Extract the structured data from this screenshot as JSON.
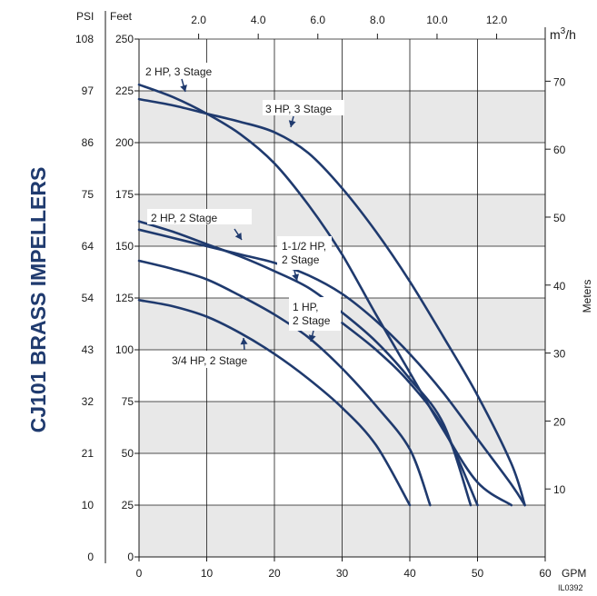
{
  "chart_data": {
    "type": "line",
    "title": "CJ101 BRASS IMPELLERS",
    "code": "IL0392",
    "x_axis": {
      "label": "GPM",
      "ticks": [
        0,
        10,
        20,
        30,
        40,
        50,
        60
      ],
      "range": [
        0,
        60
      ]
    },
    "x2_axis": {
      "label": "m3/h",
      "ticks": [
        "2.0",
        "4.0",
        "6.0",
        "8.0",
        "10.0",
        "12.0"
      ],
      "range": [
        0,
        13.63
      ]
    },
    "y_axis": {
      "label": "Feet",
      "ticks": [
        0,
        25,
        50,
        75,
        100,
        125,
        150,
        175,
        200,
        225,
        250
      ],
      "range": [
        0,
        250
      ]
    },
    "y_left_axis": {
      "label": "PSI",
      "ticks": [
        "0",
        "10",
        "21",
        "32",
        "43",
        "54",
        "64",
        "75",
        "86",
        "97",
        "108"
      ]
    },
    "y_right_axis": {
      "label": "Meters",
      "ticks": [
        10,
        20,
        30,
        40,
        50,
        60,
        70
      ],
      "range": [
        0,
        76.2
      ]
    },
    "grid": true,
    "series": [
      {
        "name": "2 HP, 3 Stage",
        "points": [
          [
            0,
            228
          ],
          [
            5,
            222
          ],
          [
            10,
            214
          ],
          [
            15,
            204
          ],
          [
            20,
            190
          ],
          [
            25,
            170
          ],
          [
            30,
            146
          ],
          [
            35,
            117
          ],
          [
            40,
            89
          ],
          [
            45,
            61
          ],
          [
            50,
            36
          ],
          [
            55,
            25
          ]
        ]
      },
      {
        "name": "3 HP, 3 Stage",
        "points": [
          [
            0,
            221
          ],
          [
            5,
            218
          ],
          [
            10,
            214
          ],
          [
            15,
            210
          ],
          [
            20,
            205
          ],
          [
            25,
            195
          ],
          [
            30,
            178
          ],
          [
            35,
            157
          ],
          [
            40,
            133
          ],
          [
            45,
            106
          ],
          [
            50,
            78
          ],
          [
            55,
            45
          ],
          [
            57,
            25
          ]
        ]
      },
      {
        "name": "2 HP, 2 Stage",
        "points": [
          [
            0,
            162
          ],
          [
            5,
            157
          ],
          [
            10,
            151
          ],
          [
            15,
            145
          ],
          [
            20,
            138
          ],
          [
            25,
            130
          ],
          [
            30,
            118
          ],
          [
            35,
            104
          ],
          [
            40,
            86
          ],
          [
            45,
            64
          ],
          [
            49,
            25
          ]
        ]
      },
      {
        "name": "1-1/2 HP, 2 Stage",
        "points": [
          [
            0,
            158
          ],
          [
            5,
            154
          ],
          [
            10,
            150
          ],
          [
            15,
            146
          ],
          [
            20,
            142
          ],
          [
            25,
            136
          ],
          [
            30,
            127
          ],
          [
            35,
            114
          ],
          [
            40,
            98
          ],
          [
            45,
            79
          ],
          [
            50,
            57
          ],
          [
            55,
            35
          ],
          [
            57,
            25
          ]
        ]
      },
      {
        "name": "1 HP, 2 Stage",
        "points": [
          [
            0,
            143
          ],
          [
            5,
            139
          ],
          [
            10,
            134
          ],
          [
            15,
            126
          ],
          [
            20,
            117
          ],
          [
            25,
            106
          ],
          [
            30,
            91
          ],
          [
            35,
            73
          ],
          [
            40,
            52
          ],
          [
            43,
            25
          ]
        ]
      },
      {
        "name": "3/4 HP, 2 Stage",
        "points": [
          [
            0,
            124
          ],
          [
            5,
            121
          ],
          [
            10,
            116
          ],
          [
            15,
            108
          ],
          [
            20,
            98
          ],
          [
            25,
            86
          ],
          [
            30,
            72
          ],
          [
            35,
            54
          ],
          [
            40,
            25
          ]
        ]
      },
      {
        "name": "",
        "points": [
          [
            30,
            113
          ],
          [
            35,
            100
          ],
          [
            40,
            84
          ],
          [
            45,
            62
          ],
          [
            50,
            25
          ]
        ]
      }
    ]
  }
}
